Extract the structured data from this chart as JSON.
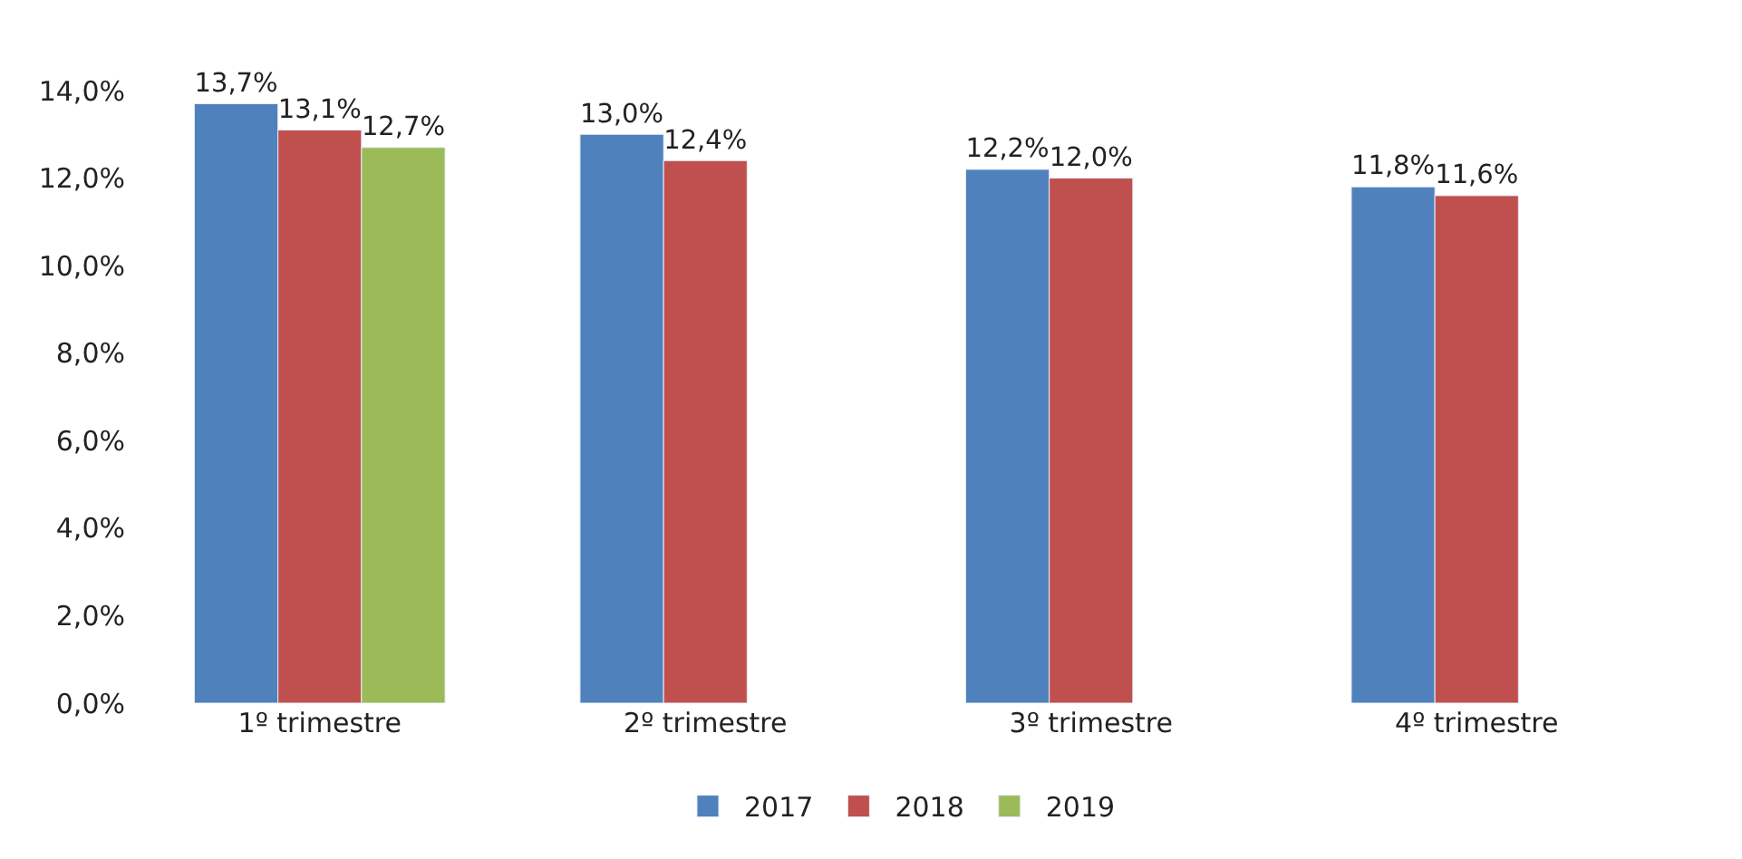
{
  "chart_data": {
    "type": "bar",
    "categories": [
      "1º trimestre",
      "2º trimestre",
      "3º trimestre",
      "4º trimestre"
    ],
    "series": [
      {
        "name": "2017",
        "color": "#4f81bd",
        "values": [
          13.7,
          13.0,
          12.2,
          11.8
        ],
        "value_labels": [
          "13,7%",
          "13,0%",
          "12,2%",
          "11,8%"
        ]
      },
      {
        "name": "2018",
        "color": "#c0504d",
        "values": [
          13.1,
          12.4,
          12.0,
          11.6
        ],
        "value_labels": [
          "13,1%",
          "12,4%",
          "12,0%",
          "11,6%"
        ]
      },
      {
        "name": "2019",
        "color": "#9bbb59",
        "values": [
          12.7,
          null,
          null,
          null
        ],
        "value_labels": [
          "12,7%",
          null,
          null,
          null
        ]
      }
    ],
    "ylim": [
      0,
      14
    ],
    "yticks": [
      {
        "value": 0,
        "label": "0,0%"
      },
      {
        "value": 2,
        "label": "2,0%"
      },
      {
        "value": 4,
        "label": "4,0%"
      },
      {
        "value": 6,
        "label": "6,0%"
      },
      {
        "value": 8,
        "label": "8,0%"
      },
      {
        "value": 10,
        "label": "10,0%"
      },
      {
        "value": 12,
        "label": "12,0%"
      },
      {
        "value": 14,
        "label": "14,0%"
      }
    ],
    "legend": "bottom"
  }
}
